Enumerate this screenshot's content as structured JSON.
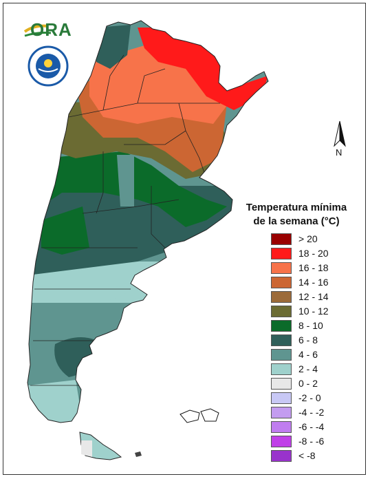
{
  "logo": {
    "brand_text": "ORA",
    "seal_text": "SERVICIO METEOROLOGICO NACIONAL ARGENTINA"
  },
  "north_arrow": {
    "label": "N"
  },
  "legend": {
    "title_line1": "Temperatura mínima",
    "title_line2": "de la semana (°C)",
    "items": [
      {
        "label": "> 20",
        "color": "#990000"
      },
      {
        "label": "18 - 20",
        "color": "#ff1a1a"
      },
      {
        "label": "16 - 18",
        "color": "#f7734a"
      },
      {
        "label": "14 - 16",
        "color": "#cc6633"
      },
      {
        "label": "12 - 14",
        "color": "#9c6b3a"
      },
      {
        "label": "10 - 12",
        "color": "#6b6b33"
      },
      {
        "label": "8 - 10",
        "color": "#0b6b2a"
      },
      {
        "label": "6 - 8",
        "color": "#2f5f5a"
      },
      {
        "label": "4 - 6",
        "color": "#5f9590"
      },
      {
        "label": "2 - 4",
        "color": "#9fd1cc"
      },
      {
        "label": "0 - 2",
        "color": "#e8e8e8"
      },
      {
        "label": "-2 - 0",
        "color": "#c8c8f5"
      },
      {
        "label": "-4 - -2",
        "color": "#c39cf0"
      },
      {
        "label": "-6 - -4",
        "color": "#c07df0"
      },
      {
        "label": "-8 - -6",
        "color": "#c040e8"
      },
      {
        "label": "< -8",
        "color": "#9933cc"
      }
    ]
  }
}
